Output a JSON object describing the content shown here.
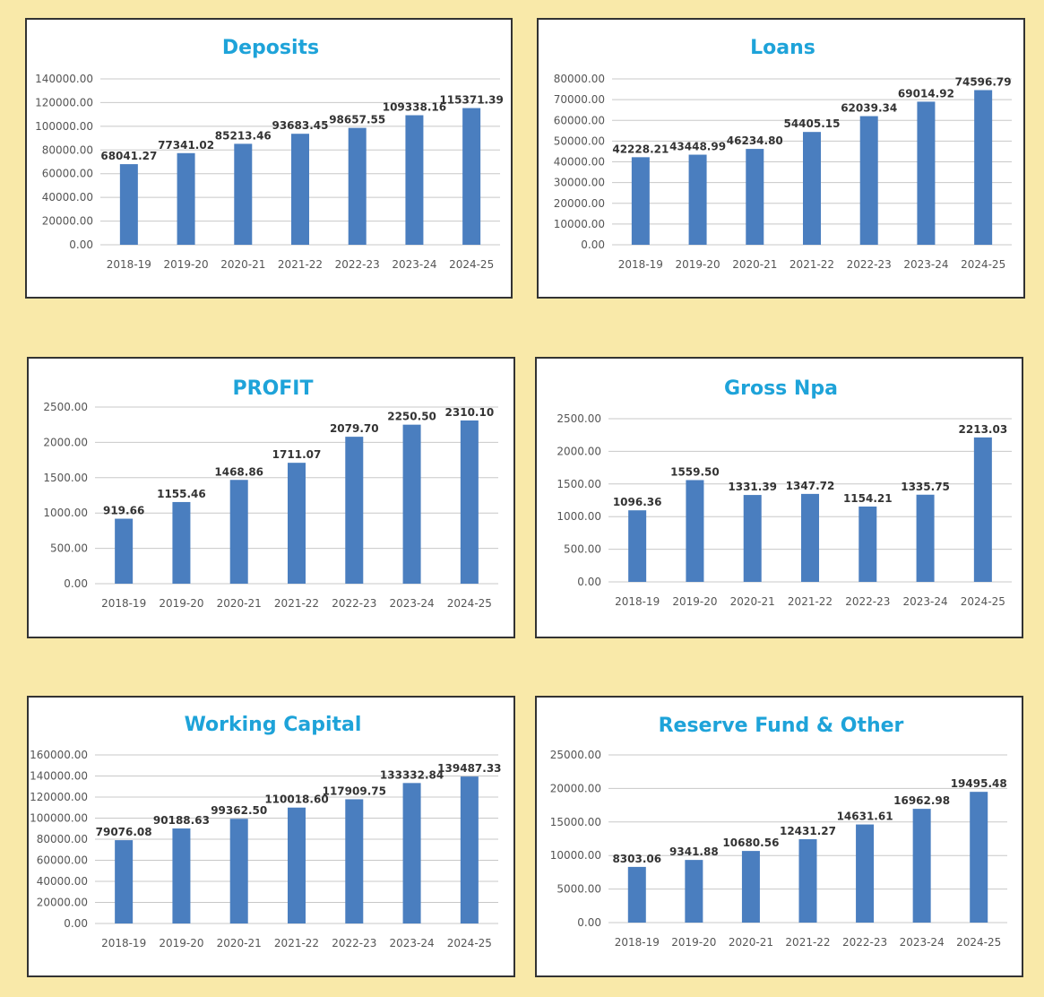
{
  "theme": {
    "background": "#f9e9a9",
    "bar": "#4a7ebf",
    "title": "#1ea3d9",
    "grid": "#c8c8c8"
  },
  "chart_data": [
    {
      "id": "deposits",
      "type": "bar",
      "title": "Deposits",
      "categories": [
        "2018-19",
        "2019-20",
        "2020-21",
        "2021-22",
        "2022-23",
        "2023-24",
        "2024-25"
      ],
      "values": [
        68041.27,
        77341.02,
        85213.46,
        93683.45,
        98657.55,
        109338.16,
        115371.39
      ],
      "value_labels": [
        "68041.27",
        "77341.02",
        "85213.46",
        "93683.45",
        "98657.55",
        "109338.16",
        "115371.39"
      ],
      "yticks": [
        "0.00",
        "20000.00",
        "40000.00",
        "60000.00",
        "80000.00",
        "100000.00",
        "120000.00",
        "140000.00"
      ],
      "ylim": [
        0,
        140000
      ],
      "grid": true,
      "legend": "none"
    },
    {
      "id": "loans",
      "type": "bar",
      "title": "Loans",
      "categories": [
        "2018-19",
        "2019-20",
        "2020-21",
        "2021-22",
        "2022-23",
        "2023-24",
        "2024-25"
      ],
      "values": [
        42228.21,
        43448.99,
        46234.8,
        54405.15,
        62039.34,
        69014.92,
        74596.79
      ],
      "value_labels": [
        "42228.21",
        "43448.99",
        "46234.80",
        "54405.15",
        "62039.34",
        "69014.92",
        "74596.79"
      ],
      "yticks": [
        "0.00",
        "10000.00",
        "20000.00",
        "30000.00",
        "40000.00",
        "50000.00",
        "60000.00",
        "70000.00",
        "80000.00"
      ],
      "ylim": [
        0,
        80000
      ],
      "grid": true,
      "legend": "none"
    },
    {
      "id": "profit",
      "type": "bar",
      "title": "PROFIT",
      "categories": [
        "2018-19",
        "2019-20",
        "2020-21",
        "2021-22",
        "2022-23",
        "2023-24",
        "2024-25"
      ],
      "values": [
        919.66,
        1155.46,
        1468.86,
        1711.07,
        2079.7,
        2250.5,
        2310.1
      ],
      "value_labels": [
        "919.66",
        "1155.46",
        "1468.86",
        "1711.07",
        "2079.70",
        "2250.50",
        "2310.10"
      ],
      "yticks": [
        "0.00",
        "500.00",
        "1000.00",
        "1500.00",
        "2000.00",
        "2500.00"
      ],
      "ylim": [
        0,
        2500
      ],
      "grid": true,
      "legend": "none"
    },
    {
      "id": "gross-npa",
      "type": "bar",
      "title": "Gross Npa",
      "categories": [
        "2018-19",
        "2019-20",
        "2020-21",
        "2021-22",
        "2022-23",
        "2023-24",
        "2024-25"
      ],
      "values": [
        1096.36,
        1559.5,
        1331.39,
        1347.72,
        1154.21,
        1335.75,
        2213.03
      ],
      "value_labels": [
        "1096.36",
        "1559.50",
        "1331.39",
        "1347.72",
        "1154.21",
        "1335.75",
        "2213.03"
      ],
      "yticks": [
        "0.00",
        "500.00",
        "1000.00",
        "1500.00",
        "2000.00",
        "2500.00"
      ],
      "ylim": [
        0,
        2500
      ],
      "grid": true,
      "legend": "none"
    },
    {
      "id": "working-capital",
      "type": "bar",
      "title": "Working Capital",
      "categories": [
        "2018-19",
        "2019-20",
        "2020-21",
        "2021-22",
        "2022-23",
        "2023-24",
        "2024-25"
      ],
      "values": [
        79076.08,
        90188.63,
        99362.5,
        110018.6,
        117909.75,
        133332.84,
        139487.33
      ],
      "value_labels": [
        "79076.08",
        "90188.63",
        "99362.50",
        "110018.60",
        "117909.75",
        "133332.84",
        "139487.33"
      ],
      "yticks": [
        "0.00",
        "20000.00",
        "40000.00",
        "60000.00",
        "80000.00",
        "100000.00",
        "120000.00",
        "140000.00",
        "160000.00"
      ],
      "ylim": [
        0,
        160000
      ],
      "grid": true,
      "legend": "none"
    },
    {
      "id": "reserve-fund",
      "type": "bar",
      "title": "Reserve Fund & Other",
      "categories": [
        "2018-19",
        "2019-20",
        "2020-21",
        "2021-22",
        "2022-23",
        "2023-24",
        "2024-25"
      ],
      "values": [
        8303.06,
        9341.88,
        10680.56,
        12431.27,
        14631.61,
        16962.98,
        19495.48
      ],
      "value_labels": [
        "8303.06",
        "9341.88",
        "10680.56",
        "12431.27",
        "14631.61",
        "16962.98",
        "19495.48"
      ],
      "yticks": [
        "0.00",
        "5000.00",
        "10000.00",
        "15000.00",
        "20000.00",
        "25000.00"
      ],
      "ylim": [
        0,
        25000
      ],
      "grid": true,
      "legend": "none"
    }
  ]
}
